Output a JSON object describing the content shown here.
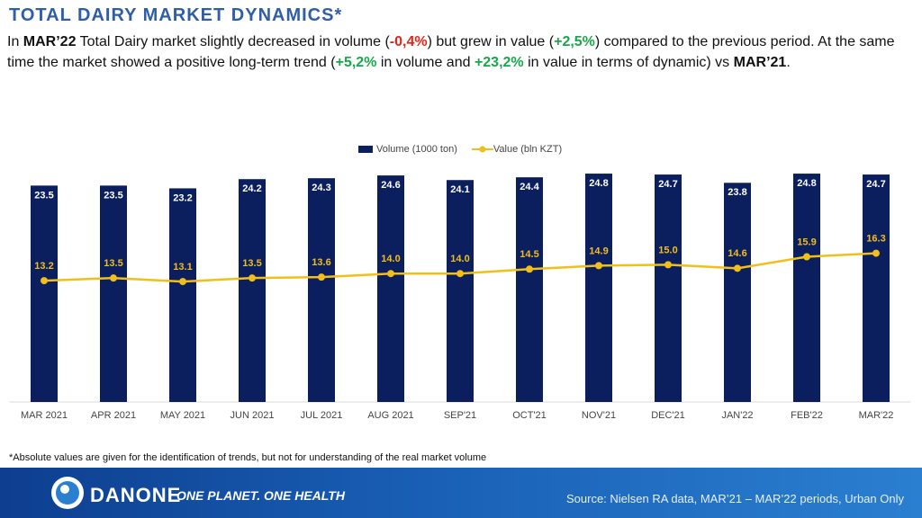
{
  "header": {
    "title": "TOTAL DAIRY MARKET DYNAMICS*",
    "intro": [
      "In ",
      "MAR’22",
      " Total Dairy market slightly decreased in volume (",
      "-0,4%",
      ") but grew in value (",
      "+2,5%",
      ") compared to the previous period. At the same time the market showed a positive long-term trend (",
      "+5,2%",
      " in volume and ",
      "+23,2%",
      " in value in terms of dynamic) vs ",
      "MAR’21",
      "."
    ]
  },
  "chart_data": {
    "type": "bar-line",
    "categories": [
      "MAR 2021",
      "APR 2021",
      "MAY 2021",
      "JUN 2021",
      "JUL 2021",
      "AUG 2021",
      "SEP'21",
      "OCT'21",
      "NOV'21",
      "DEC'21",
      "JAN'22",
      "FEB'22",
      "MAR'22"
    ],
    "series": [
      {
        "name": "Volume (1000 ton)",
        "type": "bar",
        "color": "#0b1f5e",
        "values": [
          23.5,
          23.5,
          23.2,
          24.2,
          24.3,
          24.6,
          24.1,
          24.4,
          24.8,
          24.7,
          23.8,
          24.8,
          24.7
        ],
        "value_labels": [
          "23.5",
          "23.5",
          "23.2",
          "24.2",
          "24.3",
          "24.6",
          "24.1",
          "24.4",
          "24.8",
          "24.7",
          "23.8",
          "24.8",
          "24.7"
        ]
      },
      {
        "name": "Value (bln KZT)",
        "type": "line",
        "axis": "y2",
        "color": "#f2be1a",
        "values": [
          13.2,
          13.5,
          13.1,
          13.5,
          13.6,
          14.0,
          14.0,
          14.5,
          14.9,
          15.0,
          14.6,
          15.9,
          16.3
        ],
        "value_labels": [
          "13.2",
          "13.5",
          "13.1",
          "13.5",
          "13.6",
          "14.0",
          "14.0",
          "14.5",
          "14.9",
          "15.0",
          "14.6",
          "15.9",
          "16.3"
        ]
      }
    ],
    "ylim": [
      0,
      25
    ],
    "y2lim": [
      -0.5,
      25.5
    ],
    "legend": "top"
  },
  "footnote": "*Absolute values are given for the identification of trends, but not for understanding of the real market volume",
  "footer": {
    "brand": "DANONE",
    "slogan": "ONE PLANET. ONE HEALTH",
    "source": "Source: Nielsen RA data, MAR’21 – MAR’22 periods, Urban Only"
  }
}
